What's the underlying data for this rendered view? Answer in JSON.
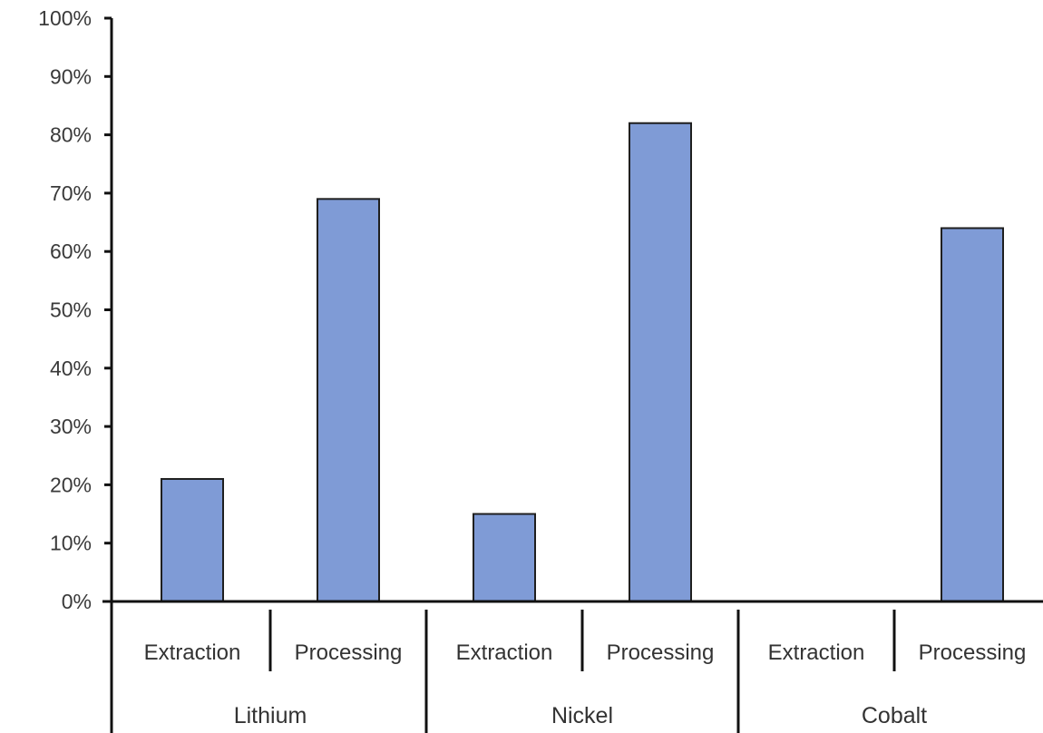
{
  "chart_data": {
    "type": "bar",
    "title": "",
    "xlabel": "",
    "ylabel": "",
    "ylim": [
      0,
      100
    ],
    "y_ticks": [
      "0%",
      "10%",
      "20%",
      "30%",
      "40%",
      "50%",
      "60%",
      "70%",
      "80%",
      "90%",
      "100%"
    ],
    "groups": [
      {
        "name": "Lithium",
        "categories": [
          "Extraction",
          "Processing"
        ],
        "values": [
          21,
          69
        ]
      },
      {
        "name": "Nickel",
        "categories": [
          "Extraction",
          "Processing"
        ],
        "values": [
          15,
          82
        ]
      },
      {
        "name": "Cobalt",
        "categories": [
          "Extraction",
          "Processing"
        ],
        "values": [
          0,
          64
        ]
      }
    ],
    "categories": [
      "Extraction",
      "Processing",
      "Extraction",
      "Processing",
      "Extraction",
      "Processing"
    ],
    "values": [
      21,
      69,
      15,
      82,
      0,
      64
    ],
    "bar_color": "#7f9bd6",
    "grid": false,
    "legend": "none"
  }
}
